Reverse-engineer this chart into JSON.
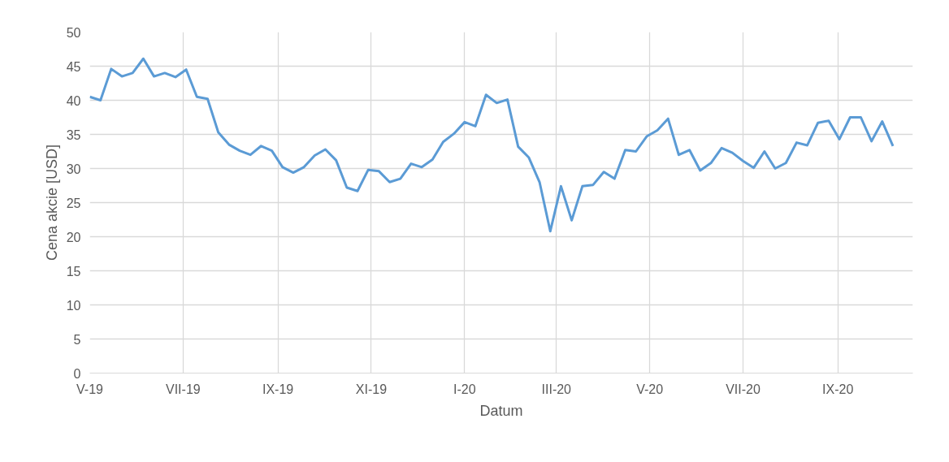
{
  "chart_data": {
    "type": "line",
    "xlabel": "Datum",
    "ylabel": "Cena akcie [USD]",
    "x": [
      "2019-05-01",
      "2019-05-08",
      "2019-05-15",
      "2019-05-22",
      "2019-05-29",
      "2019-06-05",
      "2019-06-12",
      "2019-06-19",
      "2019-06-26",
      "2019-07-03",
      "2019-07-10",
      "2019-07-17",
      "2019-07-24",
      "2019-07-31",
      "2019-08-07",
      "2019-08-14",
      "2019-08-21",
      "2019-08-28",
      "2019-09-04",
      "2019-09-11",
      "2019-09-18",
      "2019-09-25",
      "2019-10-02",
      "2019-10-09",
      "2019-10-16",
      "2019-10-23",
      "2019-10-30",
      "2019-11-06",
      "2019-11-13",
      "2019-11-20",
      "2019-11-27",
      "2019-12-04",
      "2019-12-11",
      "2019-12-18",
      "2019-12-25",
      "2020-01-01",
      "2020-01-08",
      "2020-01-15",
      "2020-01-22",
      "2020-01-29",
      "2020-02-05",
      "2020-02-12",
      "2020-02-19",
      "2020-02-26",
      "2020-03-04",
      "2020-03-11",
      "2020-03-18",
      "2020-03-25",
      "2020-04-01",
      "2020-04-08",
      "2020-04-15",
      "2020-04-22",
      "2020-04-29",
      "2020-05-06",
      "2020-05-13",
      "2020-05-20",
      "2020-05-27",
      "2020-06-03",
      "2020-06-10",
      "2020-06-17",
      "2020-06-24",
      "2020-07-01",
      "2020-07-08",
      "2020-07-15",
      "2020-07-22",
      "2020-07-29",
      "2020-08-05",
      "2020-08-12",
      "2020-08-19",
      "2020-08-26",
      "2020-09-02",
      "2020-09-09",
      "2020-09-16",
      "2020-09-23",
      "2020-09-30",
      "2020-10-07"
    ],
    "series": [
      {
        "color": "#5b9bd5",
        "values": [
          40.5,
          40.0,
          44.6,
          43.5,
          44.0,
          46.1,
          43.5,
          44.0,
          43.4,
          44.5,
          40.5,
          40.2,
          35.3,
          33.5,
          32.6,
          32.0,
          33.3,
          32.6,
          30.2,
          29.4,
          30.2,
          31.9,
          32.8,
          31.2,
          27.2,
          26.7,
          29.8,
          29.6,
          28.0,
          28.5,
          30.7,
          30.2,
          31.3,
          33.9,
          35.1,
          36.8,
          36.2,
          40.8,
          39.6,
          40.1,
          33.2,
          31.6,
          28.0,
          20.8,
          27.4,
          22.4,
          27.4,
          27.6,
          29.5,
          28.5,
          32.7,
          32.5,
          34.7,
          35.6,
          37.3,
          32.0,
          32.7,
          29.7,
          30.8,
          33.0,
          32.3,
          31.1,
          30.1,
          32.5,
          30.0,
          30.8,
          33.8,
          33.4,
          36.7,
          37.0,
          34.3,
          37.5,
          37.5,
          34.0,
          36.9,
          33.3
        ]
      }
    ],
    "xlim": [
      "2019-05-01",
      "2020-10-20"
    ],
    "xticks": [
      {
        "value": "2019-05-01",
        "label": "V-19"
      },
      {
        "value": "2019-07-01",
        "label": "VII-19"
      },
      {
        "value": "2019-09-01",
        "label": "IX-19"
      },
      {
        "value": "2019-11-01",
        "label": "XI-19"
      },
      {
        "value": "2020-01-01",
        "label": "I-20"
      },
      {
        "value": "2020-03-01",
        "label": "III-20"
      },
      {
        "value": "2020-05-01",
        "label": "V-20"
      },
      {
        "value": "2020-07-01",
        "label": "VII-20"
      },
      {
        "value": "2020-09-01",
        "label": "IX-20"
      }
    ],
    "ylim": [
      0,
      50
    ],
    "yticks": [
      0,
      5,
      10,
      15,
      20,
      25,
      30,
      35,
      40,
      45,
      50
    ],
    "grid": true,
    "marker": "none",
    "line_style": "solid"
  }
}
